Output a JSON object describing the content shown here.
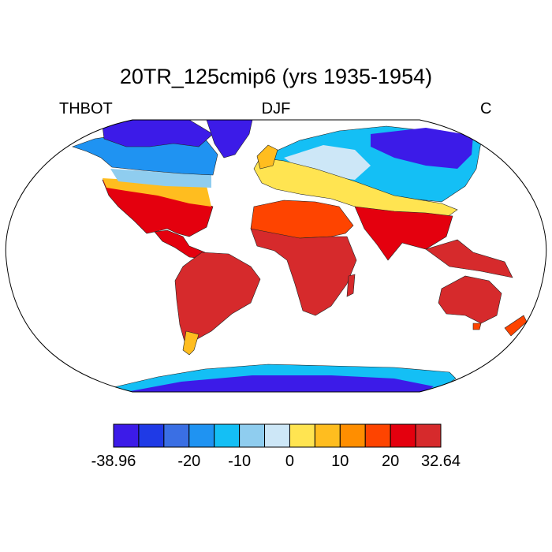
{
  "title": "20TR_125cmip6 (yrs 1935-1954)",
  "variable": "THBOT",
  "season": "DJF",
  "units": "C",
  "colorbar": {
    "colors": [
      "#3c1be8",
      "#1f3ae6",
      "#3a6fe4",
      "#1f93f2",
      "#14bff5",
      "#8fcdef",
      "#cde7f7",
      "#ffe451",
      "#ffbd1f",
      "#ff8e00",
      "#fe4400",
      "#e4000e",
      "#d62a2c"
    ],
    "labels": [
      "-38.96",
      "-20",
      "-10",
      "0",
      "10",
      "20",
      "32.64"
    ],
    "label_positions": [
      0,
      3,
      5,
      7,
      9,
      11,
      13
    ]
  }
}
